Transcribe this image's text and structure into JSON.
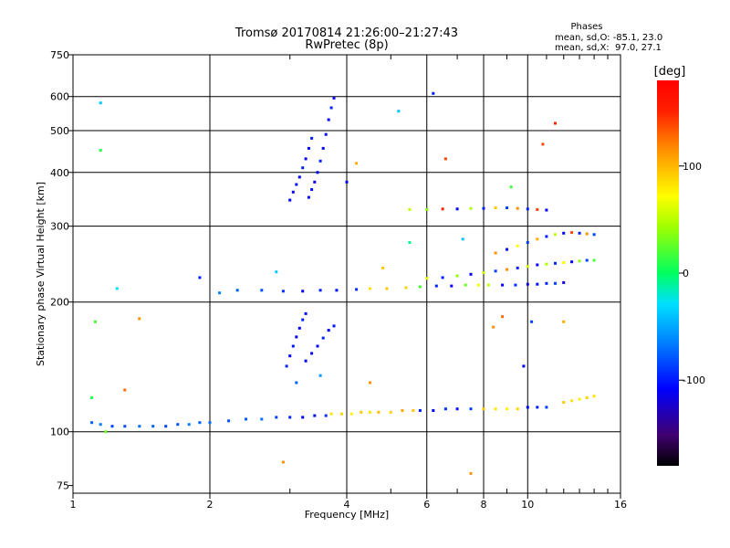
{
  "chart_data": {
    "type": "scatter",
    "title": "Tromsø 20170814 21:26:00–21:27:43",
    "subtitle": "RwPretec (8p)",
    "stats": {
      "heading": "Phases",
      "line_o": "mean, sd,O: -85.1, 23.0",
      "line_x": "mean, sd,X:  97.0, 27.1"
    },
    "xlabel": "Frequency [MHz]",
    "ylabel": "Stationary phase Virtual Height [km]",
    "x_scale": "log",
    "y_scale": "log",
    "xlim": [
      1,
      16
    ],
    "ylim": [
      72,
      750
    ],
    "xticks": [
      1,
      2,
      4,
      6,
      8,
      10,
      16
    ],
    "xtick_labels": [
      "1",
      "2",
      "4",
      "6",
      "8",
      "10",
      "16"
    ],
    "xminor": [
      3,
      5,
      7,
      9,
      11,
      12,
      13,
      14,
      15
    ],
    "yticks": [
      75,
      100,
      200,
      300,
      400,
      500,
      600,
      750
    ],
    "ytick_labels": [
      "75",
      "100",
      "200",
      "300",
      "400",
      "500",
      "600",
      "750"
    ],
    "grid": true,
    "colorbar": {
      "label": "[deg]",
      "range": [
        -180,
        180
      ],
      "ticks": [
        100,
        0,
        -100
      ],
      "tick_labels": [
        "100",
        "0",
        "-100"
      ]
    },
    "series": [
      {
        "points": [
          [
            1.1,
            105,
            -80
          ],
          [
            1.15,
            104,
            -70
          ],
          [
            1.22,
            103,
            -90
          ],
          [
            1.3,
            103,
            -85
          ],
          [
            1.4,
            103,
            -75
          ],
          [
            1.5,
            103,
            -80
          ],
          [
            1.6,
            103,
            -90
          ],
          [
            1.7,
            104,
            -85
          ],
          [
            1.8,
            104,
            -70
          ],
          [
            1.9,
            105,
            -80
          ],
          [
            2.0,
            105,
            -75
          ],
          [
            2.2,
            106,
            -85
          ],
          [
            2.4,
            107,
            -80
          ],
          [
            2.6,
            107,
            -75
          ],
          [
            2.8,
            108,
            -90
          ],
          [
            3.0,
            108,
            -100
          ],
          [
            3.2,
            108,
            -110
          ],
          [
            3.4,
            109,
            -105
          ],
          [
            3.6,
            109,
            -95
          ]
        ]
      },
      {
        "points": [
          [
            3.7,
            110,
            100
          ],
          [
            3.9,
            110,
            105
          ],
          [
            4.1,
            110,
            95
          ],
          [
            4.3,
            111,
            110
          ],
          [
            4.5,
            111,
            100
          ],
          [
            4.7,
            111,
            115
          ],
          [
            5.0,
            111,
            105
          ],
          [
            5.3,
            112,
            120
          ],
          [
            5.6,
            112,
            110
          ]
        ]
      },
      {
        "points": [
          [
            5.8,
            112,
            -100
          ],
          [
            6.2,
            112,
            -110
          ],
          [
            6.6,
            113,
            -95
          ],
          [
            7.0,
            113,
            -105
          ],
          [
            7.5,
            113,
            -90
          ]
        ]
      },
      {
        "points": [
          [
            8.0,
            113,
            110
          ],
          [
            8.5,
            113,
            100
          ],
          [
            9.0,
            113,
            95
          ],
          [
            9.5,
            113,
            105
          ]
        ]
      },
      {
        "points": [
          [
            10.0,
            114,
            -110
          ],
          [
            10.5,
            114,
            -100
          ],
          [
            11.0,
            114,
            -90
          ]
        ]
      },
      {
        "points": [
          [
            12.0,
            117,
            110
          ],
          [
            12.5,
            118,
            100
          ],
          [
            13.0,
            119,
            95
          ],
          [
            13.5,
            120,
            105
          ],
          [
            14.0,
            121,
            100
          ]
        ]
      },
      {
        "points": [
          [
            2.3,
            213,
            -80
          ],
          [
            2.6,
            213,
            -85
          ],
          [
            2.9,
            212,
            -95
          ],
          [
            3.2,
            212,
            -110
          ],
          [
            3.5,
            213,
            -100
          ],
          [
            3.8,
            213,
            -105
          ],
          [
            4.2,
            214,
            -95
          ]
        ]
      },
      {
        "points": [
          [
            4.5,
            215,
            100
          ],
          [
            4.9,
            215,
            110
          ],
          [
            5.4,
            216,
            105
          ]
        ]
      },
      {
        "points": [
          [
            5.8,
            217,
            20
          ],
          [
            6.3,
            218,
            -100
          ],
          [
            6.8,
            218,
            -110
          ],
          [
            7.3,
            219,
            30
          ],
          [
            7.8,
            219,
            90
          ]
        ]
      },
      {
        "points": [
          [
            8.2,
            219,
            60
          ],
          [
            8.8,
            219,
            -110
          ],
          [
            9.4,
            219,
            -95
          ],
          [
            10.0,
            220,
            -120
          ],
          [
            10.5,
            220,
            -105
          ],
          [
            11.0,
            221,
            -100
          ],
          [
            11.5,
            221,
            -90
          ],
          [
            12.0,
            222,
            -120
          ]
        ]
      },
      {
        "points": [
          [
            6.0,
            227,
            80
          ],
          [
            6.5,
            228,
            -100
          ],
          [
            7.0,
            230,
            40
          ],
          [
            7.5,
            232,
            -110
          ],
          [
            8.0,
            234,
            60
          ],
          [
            8.5,
            236,
            -90
          ],
          [
            9.0,
            238,
            130
          ],
          [
            9.5,
            240,
            -100
          ],
          [
            10.0,
            242,
            70
          ],
          [
            10.5,
            244,
            -110
          ],
          [
            11.0,
            245,
            50
          ],
          [
            11.5,
            246,
            -100
          ],
          [
            12.0,
            247,
            90
          ],
          [
            12.5,
            248,
            -110
          ],
          [
            13.0,
            249,
            40
          ],
          [
            13.5,
            250,
            -90
          ],
          [
            14.0,
            250,
            20
          ]
        ]
      },
      {
        "points": [
          [
            8.5,
            260,
            130
          ],
          [
            9.0,
            265,
            -110
          ],
          [
            9.5,
            270,
            90
          ],
          [
            10.0,
            275,
            -90
          ],
          [
            10.5,
            280,
            120
          ],
          [
            11.0,
            284,
            -100
          ],
          [
            11.5,
            287,
            60
          ],
          [
            12.0,
            289,
            -110
          ],
          [
            12.5,
            290,
            150
          ],
          [
            13.0,
            289,
            -100
          ],
          [
            13.5,
            288,
            130
          ],
          [
            14.0,
            287,
            -90
          ]
        ]
      },
      {
        "points": [
          [
            5.5,
            328,
            60
          ],
          [
            6.0,
            328,
            40
          ],
          [
            6.5,
            329,
            160
          ],
          [
            7.0,
            329,
            -110
          ],
          [
            7.5,
            330,
            50
          ],
          [
            8.0,
            330,
            -100
          ],
          [
            8.5,
            331,
            110
          ],
          [
            9.0,
            331,
            -90
          ],
          [
            9.5,
            330,
            130
          ],
          [
            10.0,
            329,
            -100
          ],
          [
            10.5,
            328,
            150
          ],
          [
            11.0,
            327,
            -110
          ]
        ]
      },
      {
        "points": [
          [
            3.0,
            345,
            -110
          ],
          [
            3.05,
            360,
            -115
          ],
          [
            3.1,
            375,
            -105
          ],
          [
            3.15,
            390,
            -110
          ],
          [
            3.2,
            410,
            -100
          ],
          [
            3.25,
            430,
            -115
          ],
          [
            3.3,
            455,
            -110
          ],
          [
            3.35,
            480,
            -100
          ]
        ]
      },
      {
        "points": [
          [
            3.3,
            350,
            -110
          ],
          [
            3.35,
            365,
            -105
          ],
          [
            3.4,
            380,
            -115
          ],
          [
            3.45,
            400,
            -110
          ],
          [
            3.5,
            425,
            -100
          ],
          [
            3.55,
            455,
            -110
          ],
          [
            3.6,
            490,
            -105
          ],
          [
            3.65,
            530,
            -110
          ],
          [
            3.7,
            565,
            -100
          ],
          [
            3.75,
            595,
            -115
          ]
        ]
      },
      {
        "points": [
          [
            2.95,
            142,
            -100
          ],
          [
            3.0,
            150,
            -110
          ],
          [
            3.05,
            158,
            -105
          ],
          [
            3.1,
            166,
            -115
          ],
          [
            3.15,
            174,
            -110
          ],
          [
            3.2,
            182,
            -100
          ],
          [
            3.25,
            188,
            -105
          ]
        ]
      },
      {
        "points": [
          [
            3.25,
            146,
            -110
          ],
          [
            3.35,
            152,
            -115
          ],
          [
            3.45,
            158,
            -110
          ],
          [
            3.55,
            165,
            -100
          ],
          [
            3.65,
            172,
            -110
          ],
          [
            3.75,
            176,
            -105
          ]
        ]
      },
      {
        "points": [
          [
            1.1,
            120,
            10
          ],
          [
            1.12,
            180,
            20
          ],
          [
            1.15,
            450,
            10
          ],
          [
            1.15,
            580,
            -40
          ],
          [
            1.18,
            100,
            30
          ],
          [
            1.25,
            215,
            -30
          ],
          [
            1.3,
            125,
            140
          ],
          [
            1.4,
            183,
            130
          ],
          [
            1.9,
            228,
            -100
          ],
          [
            2.1,
            210,
            -70
          ],
          [
            2.8,
            235,
            -40
          ],
          [
            2.9,
            85,
            130
          ],
          [
            3.1,
            130,
            -80
          ],
          [
            3.5,
            135,
            -60
          ],
          [
            4.0,
            380,
            -110
          ],
          [
            4.2,
            420,
            120
          ],
          [
            4.5,
            130,
            130
          ],
          [
            4.8,
            240,
            110
          ],
          [
            5.2,
            555,
            -40
          ],
          [
            5.5,
            275,
            -10
          ],
          [
            6.2,
            610,
            -100
          ],
          [
            6.6,
            430,
            150
          ],
          [
            7.2,
            280,
            -40
          ],
          [
            7.5,
            80,
            130
          ],
          [
            8.4,
            175,
            130
          ],
          [
            8.8,
            185,
            140
          ],
          [
            9.2,
            370,
            20
          ],
          [
            9.8,
            142,
            -110
          ],
          [
            10.2,
            180,
            -90
          ],
          [
            10.8,
            465,
            150
          ],
          [
            11.5,
            520,
            160
          ],
          [
            12.0,
            180,
            120
          ]
        ]
      }
    ]
  }
}
